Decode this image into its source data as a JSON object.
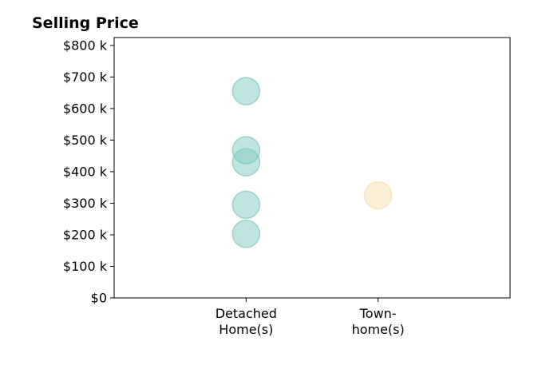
{
  "chart_data": {
    "type": "scatter",
    "title": "Selling Price",
    "xlabel": "",
    "ylabel": "",
    "categories": [
      [
        "Detached",
        "Home(s)"
      ],
      [
        "Town-",
        "home(s)"
      ]
    ],
    "y_ticks": [
      {
        "value": 0,
        "label": "$0"
      },
      {
        "value": 100000,
        "label": "$100 k"
      },
      {
        "value": 200000,
        "label": "$200 k"
      },
      {
        "value": 300000,
        "label": "$300 k"
      },
      {
        "value": 400000,
        "label": "$400 k"
      },
      {
        "value": 500000,
        "label": "$500 k"
      },
      {
        "value": 600000,
        "label": "$600 k"
      },
      {
        "value": 700000,
        "label": "$700 k"
      },
      {
        "value": 800000,
        "label": "$800 k"
      }
    ],
    "ylim": [
      0,
      825000
    ],
    "xlim": [
      -1,
      2
    ],
    "grid": false,
    "series": [
      {
        "category_index": 0,
        "color": "#82c9bf",
        "values": [
          655000,
          468000,
          430000,
          295000,
          203000
        ]
      },
      {
        "category_index": 1,
        "color": "#f5deaf",
        "values": [
          325000
        ]
      }
    ]
  }
}
